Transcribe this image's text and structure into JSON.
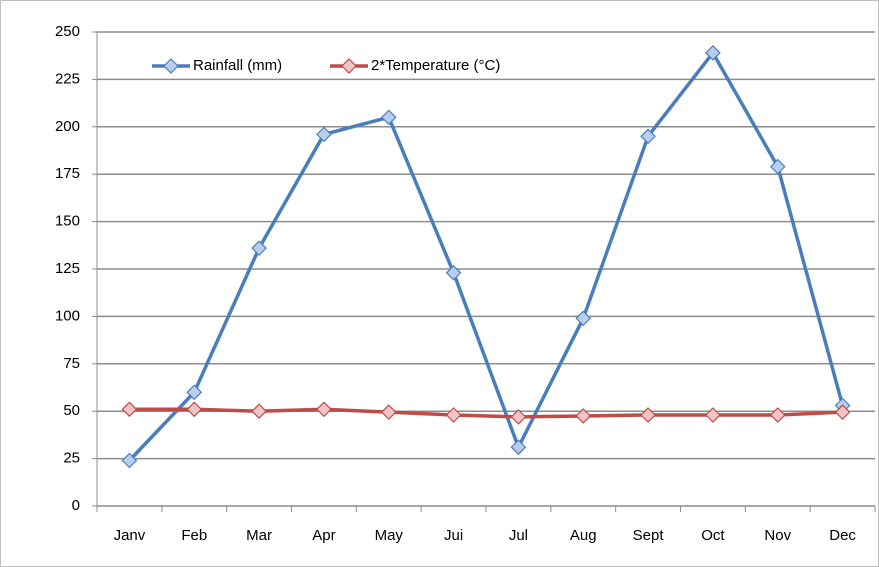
{
  "chart_data": {
    "type": "line",
    "categories": [
      "Janv",
      "Feb",
      "Mar",
      "Apr",
      "May",
      "Jui",
      "Jul",
      "Aug",
      "Sept",
      "Oct",
      "Nov",
      "Dec"
    ],
    "series": [
      {
        "name": "Rainfall (mm)",
        "color": "#4a7ebb",
        "marker_fill": "#b9cdec",
        "values": [
          24,
          60,
          136,
          196,
          205,
          123,
          31,
          99,
          195,
          239,
          179,
          53
        ]
      },
      {
        "name": "2*Temperature (°C)",
        "color": "#be4b48",
        "marker_fill": "#f2c4c3",
        "values": [
          51,
          51,
          50,
          51,
          49.5,
          48,
          47,
          47.5,
          48,
          48,
          48,
          49.5
        ]
      }
    ],
    "ylim": [
      0,
      250
    ],
    "yticks": [
      0,
      25,
      50,
      75,
      100,
      125,
      150,
      175,
      200,
      225,
      250
    ],
    "grid": true,
    "legend": "upper left"
  }
}
